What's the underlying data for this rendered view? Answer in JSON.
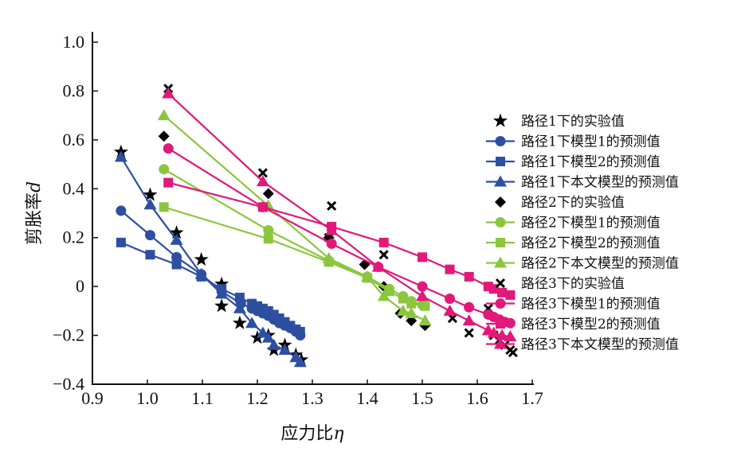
{
  "chart_data": {
    "type": "scatter",
    "title": "",
    "xlabel": "应力比",
    "xlabel_symbol": "η",
    "ylabel": "剪胀率",
    "ylabel_symbol": "d",
    "xlim": [
      0.9,
      1.7
    ],
    "ylim": [
      -0.4,
      1.0
    ],
    "xticks": [
      "0.9",
      "1.0",
      "1.1",
      "1.2",
      "1.3",
      "1.4",
      "1.5",
      "1.6",
      "1.7"
    ],
    "yticks": [
      "−0.4",
      "−0.2",
      "0",
      "0.2",
      "0.4",
      "0.6",
      "0.8",
      "1.0"
    ],
    "legend_position": "right",
    "colors": {
      "path1": "#2e4fa0",
      "path2": "#8cc63f",
      "path3": "#e0197a",
      "exp": "#000000"
    },
    "series": [
      {
        "name": "路径1下的实验值",
        "marker": "star",
        "color": "#000000",
        "line": false,
        "x": [
          0.952,
          1.005,
          1.053,
          1.098,
          1.135,
          1.135,
          1.168,
          1.2,
          1.22,
          1.23,
          1.25,
          1.27,
          1.28
        ],
        "y": [
          0.55,
          0.375,
          0.22,
          0.11,
          0.01,
          -0.08,
          -0.15,
          -0.21,
          -0.2,
          -0.26,
          -0.24,
          -0.28,
          -0.3
        ]
      },
      {
        "name": "路径1下模型1的预测值",
        "marker": "circle",
        "color": "#2e4fa0",
        "line": true,
        "x": [
          0.952,
          1.005,
          1.053,
          1.098,
          1.135,
          1.17,
          1.19,
          1.2,
          1.21,
          1.22,
          1.23,
          1.24,
          1.25,
          1.26,
          1.27,
          1.278
        ],
        "y": [
          0.31,
          0.21,
          0.12,
          0.05,
          -0.02,
          -0.07,
          -0.09,
          -0.1,
          -0.11,
          -0.12,
          -0.135,
          -0.15,
          -0.16,
          -0.17,
          -0.185,
          -0.2
        ]
      },
      {
        "name": "路径1下模型2的预测值",
        "marker": "square",
        "color": "#2e4fa0",
        "line": true,
        "x": [
          0.952,
          1.005,
          1.053,
          1.098,
          1.135,
          1.168,
          1.19,
          1.2,
          1.21,
          1.22,
          1.23,
          1.24,
          1.25,
          1.26,
          1.27,
          1.278
        ],
        "y": [
          0.18,
          0.13,
          0.09,
          0.04,
          -0.01,
          -0.045,
          -0.07,
          -0.08,
          -0.09,
          -0.1,
          -0.115,
          -0.13,
          -0.145,
          -0.16,
          -0.175,
          -0.185
        ]
      },
      {
        "name": "路径1下本文模型的预测值",
        "marker": "triangle",
        "color": "#2e4fa0",
        "line": true,
        "x": [
          0.952,
          1.005,
          1.053,
          1.098,
          1.135,
          1.168,
          1.19,
          1.21,
          1.22,
          1.23,
          1.25,
          1.27,
          1.278
        ],
        "y": [
          0.53,
          0.335,
          0.19,
          0.05,
          -0.03,
          -0.09,
          -0.15,
          -0.19,
          -0.21,
          -0.24,
          -0.26,
          -0.29,
          -0.31
        ]
      },
      {
        "name": "路径2下的实验值",
        "marker": "diamond",
        "color": "#000000",
        "line": false,
        "x": [
          1.03,
          1.22,
          1.33,
          1.395,
          1.43,
          1.46,
          1.48,
          1.505
        ],
        "y": [
          0.615,
          0.38,
          0.2,
          0.09,
          0.0,
          -0.11,
          -0.14,
          -0.16
        ]
      },
      {
        "name": "路径2下模型1的预测值",
        "marker": "circle",
        "color": "#8cc63f",
        "line": true,
        "x": [
          1.03,
          1.22,
          1.33,
          1.4,
          1.44,
          1.465,
          1.48,
          1.5
        ],
        "y": [
          0.48,
          0.23,
          0.105,
          0.04,
          -0.01,
          -0.04,
          -0.06,
          -0.075
        ]
      },
      {
        "name": "路径2下模型2的预测值",
        "marker": "square",
        "color": "#8cc63f",
        "line": true,
        "x": [
          1.03,
          1.22,
          1.33,
          1.4,
          1.44,
          1.465,
          1.48,
          1.505
        ],
        "y": [
          0.325,
          0.195,
          0.1,
          0.035,
          -0.02,
          -0.05,
          -0.07,
          -0.08
        ]
      },
      {
        "name": "路径2下本文模型的预测值",
        "marker": "triangle",
        "color": "#8cc63f",
        "line": true,
        "x": [
          1.03,
          1.22,
          1.33,
          1.4,
          1.43,
          1.465,
          1.48,
          1.505
        ],
        "y": [
          0.7,
          0.33,
          0.115,
          0.04,
          -0.04,
          -0.1,
          -0.11,
          -0.14
        ]
      },
      {
        "name": "路径3下的实验值",
        "marker": "x",
        "color": "#000000",
        "line": false,
        "x": [
          1.038,
          1.21,
          1.335,
          1.33,
          1.43,
          1.555,
          1.585,
          1.62,
          1.63,
          1.64,
          1.65,
          1.66,
          1.665
        ],
        "y": [
          0.81,
          0.465,
          0.33,
          0.2,
          0.13,
          -0.13,
          -0.19,
          -0.09,
          -0.2,
          -0.22,
          -0.24,
          -0.26,
          -0.27
        ]
      },
      {
        "name": "路径3下模型1的预测值",
        "marker": "circle",
        "color": "#e0197a",
        "line": true,
        "x": [
          1.038,
          1.21,
          1.335,
          1.42,
          1.5,
          1.55,
          1.585,
          1.62,
          1.63,
          1.64,
          1.65,
          1.66
        ],
        "y": [
          0.565,
          0.325,
          0.175,
          0.08,
          0.0,
          -0.05,
          -0.085,
          -0.115,
          -0.125,
          -0.135,
          -0.145,
          -0.15
        ]
      },
      {
        "name": "路径3下模型2的预测值",
        "marker": "square",
        "color": "#e0197a",
        "line": true,
        "x": [
          1.038,
          1.21,
          1.335,
          1.43,
          1.5,
          1.55,
          1.585,
          1.62,
          1.63,
          1.645,
          1.66
        ],
        "y": [
          0.425,
          0.325,
          0.245,
          0.18,
          0.12,
          0.07,
          0.04,
          0.0,
          -0.01,
          -0.025,
          -0.035
        ]
      },
      {
        "name": "路径3下本文模型的预测值",
        "marker": "triangle",
        "color": "#e0197a",
        "line": true,
        "x": [
          1.038,
          1.21,
          1.335,
          1.42,
          1.5,
          1.55,
          1.585,
          1.62,
          1.63,
          1.645,
          1.66
        ],
        "y": [
          0.79,
          0.43,
          0.23,
          0.08,
          -0.04,
          -0.1,
          -0.14,
          -0.18,
          -0.19,
          -0.2,
          -0.205
        ]
      }
    ]
  }
}
